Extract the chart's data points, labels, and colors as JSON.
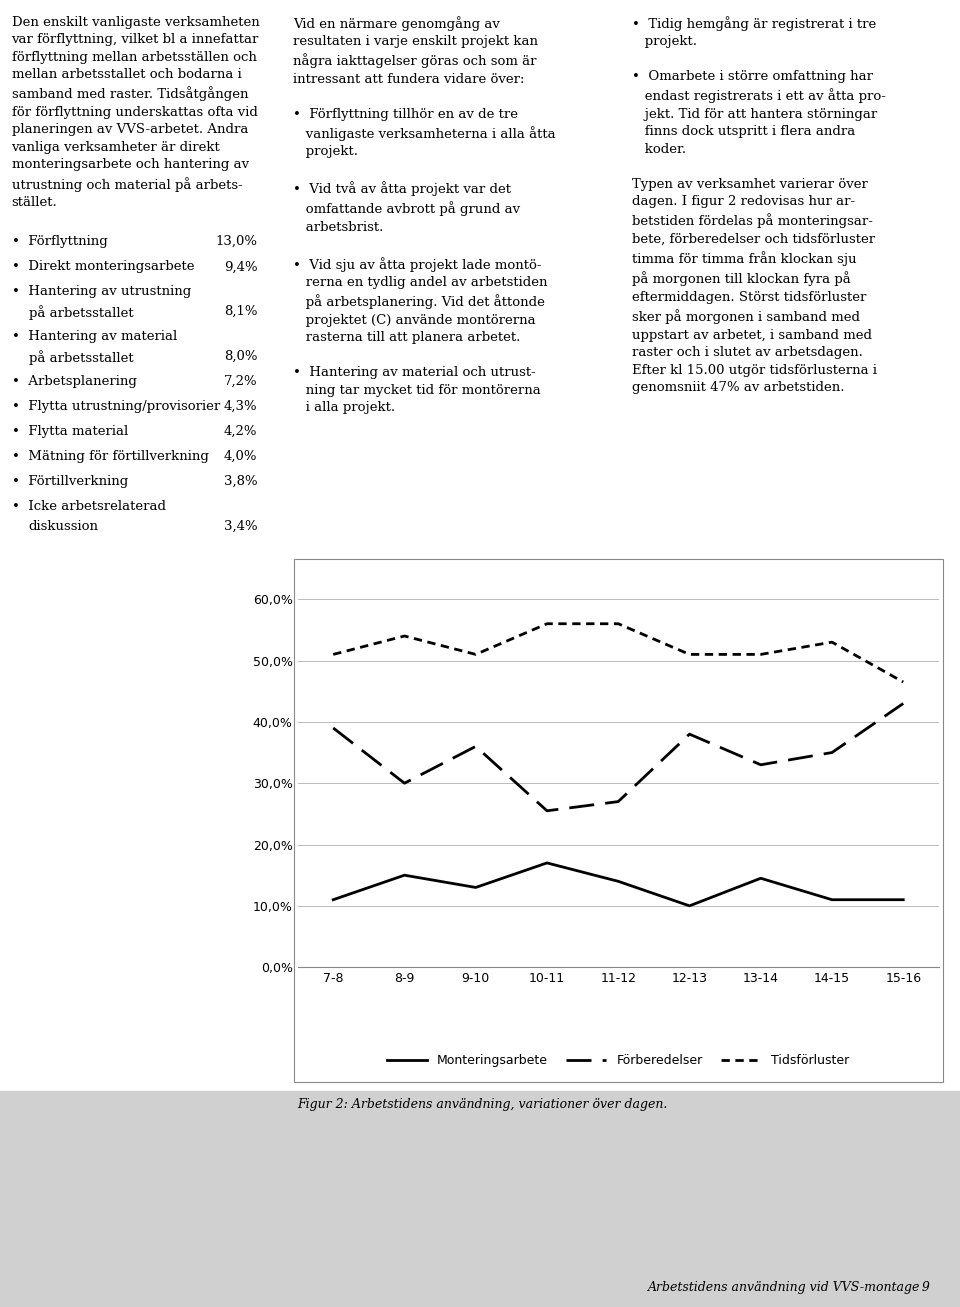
{
  "x_labels": [
    "7-8",
    "8-9",
    "9-10",
    "10-11",
    "11-12",
    "12-13",
    "13-14",
    "14-15",
    "15-16"
  ],
  "monteringsarbete": [
    11.0,
    15.0,
    13.0,
    17.0,
    14.0,
    10.0,
    14.5,
    11.0,
    11.0
  ],
  "forberedelser": [
    39.0,
    30.0,
    36.0,
    25.5,
    27.0,
    38.0,
    33.0,
    35.0,
    43.0
  ],
  "tidsforluster": [
    51.0,
    54.0,
    51.0,
    56.0,
    56.0,
    51.0,
    51.0,
    53.0,
    46.5
  ],
  "legend_monteringsarbete": "Monteringsarbete",
  "legend_forberedelser": "Förberedelser",
  "legend_tidsforluster": "Tidsförluster",
  "figcaption": "Figur 2: Arbetstidens användning, variationer över dagen.",
  "ylim": [
    0.0,
    65.0
  ],
  "yticks": [
    0.0,
    10.0,
    20.0,
    30.0,
    40.0,
    50.0,
    60.0
  ],
  "page_bg": "#ffffff",
  "footer_bg": "#d0d0d0",
  "chart_bg": "#ffffff",
  "line_color": "#000000",
  "grid_color": "#bbbbbb",
  "tick_fontsize": 9,
  "legend_fontsize": 9,
  "body_fontsize": 9.5,
  "footer_text": "Arbetstidens användning vid VVS-montage 9",
  "left_intro": "Den enskilt vanligaste verksamheten\nvar förflyttning, vilket bl a innefattar\nförflyttning mellan arbetsställen och\nmellan arbetsstallet och bodarna i\nsamband med raster. Tidsåtgången\nför förflyttning underskattas ofta vid\nplaneringen av VVS-arbetet. Andra\nvanliga verksamheter är direkt\nmonteringsarbete och hantering av\nutrustning och material på arbets-\nstället.",
  "bullet_labels": [
    "Förflyttning",
    "Direkt monteringsarbete",
    "Hantering av utrustning\npå arbetsstallet",
    "Hantering av material\npå arbetsstallet",
    "Arbetsplanering",
    "Flytta utrustning/provisorier",
    "Flytta material",
    "Mätning för förtillverkning",
    "Förtillverkning",
    "Icke arbetsrelaterad\ndiskussion"
  ],
  "bullet_values": [
    "13,0%",
    "9,4%",
    "8,1%",
    "8,0%",
    "7,2%",
    "4,3%",
    "4,2%",
    "4,0%",
    "3,8%",
    "3,4%"
  ],
  "mid_text": "Vid en närmare genomgång av\nresultaten i varje enskilt projekt kan\nnågra iakttagelser göras och som är\nintressant att fundera vidare över:\n\n•  Förflyttning tillhör en av de tre\n   vanligaste verksamheterna i alla åtta\n   projekt.\n\n•  Vid två av åtta projekt var det\n   omfattande avbrott på grund av\n   arbetsbrist.\n\n•  Vid sju av åtta projekt lade montö-\n   rerna en tydlig andel av arbetstiden\n   på arbetsplanering. Vid det åttonde\n   projektet (C) använde montörerna\n   rasterna till att planera arbetet.\n\n•  Hantering av material och utrust-\n   ning tar mycket tid för montörerna\n   i alla projekt.",
  "right_text": "•  Tidig hemgång är registrerat i tre\n   projekt.\n\n•  Omarbete i större omfattning har\n   endast registrerats i ett av åtta pro-\n   jekt. Tid för att hantera störningar\n   finns dock utspritt i flera andra\n   koder.\n\nTypen av verksamhet varierar över\ndagen. I figur 2 redovisas hur ar-\nbetstiden fördelas på monteringsar-\nbete, förberedelser och tidsförluster\ntimma för timma från klockan sju\npå morgonen till klockan fyra på\neftermiddagen. Störst tidsförluster\nsker på morgonen i samband med\nuppstart av arbetet, i samband med\nraster och i slutet av arbetsdagen.\nEfter kl 15.00 utgör tidsförlusterna i\ngenomsniit 47% av arbetstiden."
}
